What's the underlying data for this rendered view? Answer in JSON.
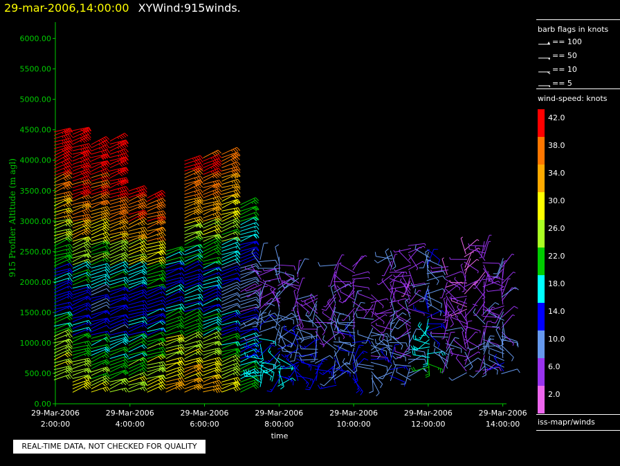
{
  "header": {
    "timestamp": "29-mar-2006,14:00:00",
    "title": "XYWind:915winds."
  },
  "legend": {
    "barb_title": "barb flags in knots",
    "barb_items": [
      "== 100",
      "== 50",
      "== 10",
      "== 5"
    ],
    "speed_title": "wind-speed: knots",
    "speed_labels": [
      "42.0",
      "38.0",
      "34.0",
      "30.0",
      "26.0",
      "22.0",
      "18.0",
      "14.0",
      "10.0",
      "6.0",
      "2.0"
    ],
    "speed_colors": [
      "#ff0000",
      "#ff7700",
      "#ffaa00",
      "#ffff00",
      "#aaff22",
      "#00cc00",
      "#00ffff",
      "#0000ff",
      "#6699ee",
      "#9933ee",
      "#ee66ee"
    ],
    "source": "iss-mapr/winds"
  },
  "notice": "REAL-TIME DATA, NOT CHECKED FOR QUALITY",
  "chart_data": {
    "type": "wind-barb time-height",
    "ylabel": "915 Profiler Altitude (m agl)",
    "xlabel": "time",
    "ylim": [
      0,
      6200
    ],
    "yticks": [
      "0.00",
      "500.00",
      "1000.00",
      "1500.00",
      "2000.00",
      "2500.00",
      "3000.00",
      "3500.00",
      "4000.00",
      "4500.00",
      "5000.00",
      "5500.00",
      "6000.00"
    ],
    "xticks": [
      {
        "date": "29-Mar-2006",
        "time": "2:00:00"
      },
      {
        "date": "29-Mar-2006",
        "time": "4:00:00"
      },
      {
        "date": "29-Mar-2006",
        "time": "6:00:00"
      },
      {
        "date": "29-Mar-2006",
        "time": "8:00:00"
      },
      {
        "date": "29-Mar-2006",
        "time": "10:00:00"
      },
      {
        "date": "29-Mar-2006",
        "time": "12:00:00"
      },
      {
        "date": "29-Mar-2006",
        "time": "14:00:00"
      }
    ],
    "x_range_hours": [
      2,
      14.3
    ],
    "profiles": [
      {
        "t": 2.0,
        "top": 4500,
        "bottom": 400,
        "spd": [
          29,
          28,
          26,
          21,
          14,
          16,
          22,
          28,
          33,
          38,
          42,
          44
        ]
      },
      {
        "t": 2.5,
        "top": 4500,
        "bottom": 200,
        "spd": [
          30,
          26,
          22,
          15,
          14,
          20,
          26,
          32,
          37,
          41,
          43,
          44
        ]
      },
      {
        "t": 3.0,
        "top": 4300,
        "bottom": 200,
        "spd": [
          28,
          24,
          20,
          14,
          13,
          18,
          24,
          30,
          36,
          40,
          42,
          44
        ]
      },
      {
        "t": 3.5,
        "top": 4350,
        "bottom": 200,
        "spd": [
          26,
          23,
          19,
          13,
          14,
          19,
          26,
          33,
          38,
          42,
          43,
          44
        ]
      },
      {
        "t": 4.0,
        "top": 3500,
        "bottom": 200,
        "spd": [
          28,
          24,
          20,
          15,
          14,
          18,
          28,
          34,
          39,
          42,
          43,
          43
        ]
      },
      {
        "t": 4.5,
        "top": 3400,
        "bottom": 200,
        "spd": [
          30,
          27,
          23,
          16,
          14,
          22,
          30,
          36,
          40,
          42,
          43,
          44
        ]
      },
      {
        "t": 5.0,
        "top": 2550,
        "bottom": 200,
        "spd": [
          32,
          30,
          27,
          22,
          16,
          14,
          20,
          28,
          33,
          38,
          41,
          42
        ]
      },
      {
        "t": 5.5,
        "top": 4000,
        "bottom": 200,
        "spd": [
          34,
          31,
          27,
          22,
          17,
          14,
          20,
          27,
          33,
          38,
          41,
          43
        ]
      },
      {
        "t": 6.0,
        "top": 4050,
        "bottom": 200,
        "spd": [
          34,
          30,
          26,
          20,
          15,
          16,
          22,
          28,
          34,
          38,
          41,
          42
        ]
      },
      {
        "t": 6.5,
        "top": 4150,
        "bottom": 200,
        "spd": [
          30,
          26,
          21,
          16,
          10,
          12,
          18,
          24,
          30,
          34,
          38,
          41
        ]
      },
      {
        "t": 7.0,
        "top": 3300,
        "bottom": 200,
        "spd": [
          22,
          19,
          16,
          12,
          8,
          10,
          14,
          18,
          22,
          26,
          28,
          30
        ]
      },
      {
        "t": 7.5,
        "top": 2400,
        "bottom": 300,
        "spd": [
          20,
          18,
          15,
          11,
          8,
          7,
          9,
          12,
          14,
          16,
          18,
          20
        ]
      },
      {
        "t": 8.0,
        "top": 2400,
        "bottom": 300,
        "spd": [
          18,
          16,
          13,
          10,
          8,
          7,
          9,
          12,
          15,
          18,
          20,
          22
        ]
      },
      {
        "t": 8.5,
        "top": 2200,
        "bottom": 400,
        "spd": [
          16,
          14,
          12,
          10,
          8,
          7,
          9,
          12,
          16,
          19,
          22,
          24
        ]
      },
      {
        "t": 9.0,
        "top": 1800,
        "bottom": 400,
        "spd": [
          15,
          13,
          11,
          9,
          7,
          6,
          8,
          11,
          14,
          17,
          20,
          22
        ]
      },
      {
        "t": 9.5,
        "top": 2300,
        "bottom": 300,
        "spd": [
          14,
          12,
          10,
          8,
          7,
          6,
          8,
          10,
          13,
          16,
          19,
          22
        ]
      },
      {
        "t": 10.0,
        "top": 2300,
        "bottom": 400,
        "spd": [
          15,
          13,
          11,
          9,
          7,
          6,
          7,
          9,
          12,
          15,
          18,
          21
        ]
      },
      {
        "t": 10.5,
        "top": 1800,
        "bottom": 400,
        "spd": [
          13,
          11,
          9,
          8,
          6,
          5,
          7,
          9,
          11,
          14,
          16,
          18
        ]
      },
      {
        "t": 11.0,
        "top": 2500,
        "bottom": 400,
        "spd": [
          14,
          12,
          10,
          8,
          7,
          6,
          8,
          10,
          13,
          16,
          18,
          20
        ]
      },
      {
        "t": 11.5,
        "top": 2650,
        "bottom": 400,
        "spd": [
          12,
          10,
          9,
          8,
          6,
          5,
          7,
          9,
          12,
          14,
          16,
          18
        ]
      },
      {
        "t": 12.0,
        "top": 2550,
        "bottom": 600,
        "spd": [
          24,
          22,
          18,
          15,
          12,
          10,
          12,
          14,
          16,
          18,
          18,
          20
        ]
      },
      {
        "t": 12.5,
        "top": 2300,
        "bottom": 600,
        "spd": [
          10,
          9,
          8,
          7,
          6,
          5,
          6,
          8,
          10,
          12,
          14,
          15
        ]
      },
      {
        "t": 13.0,
        "top": 2550,
        "bottom": 500,
        "spd": [
          9,
          8,
          7,
          6,
          5,
          4,
          5,
          7,
          9,
          11,
          13,
          14
        ]
      },
      {
        "t": 13.5,
        "top": 2650,
        "bottom": 500,
        "spd": [
          10,
          9,
          8,
          7,
          6,
          5,
          6,
          7,
          8,
          10,
          12,
          14
        ]
      },
      {
        "t": 14.0,
        "top": 2400,
        "bottom": 500,
        "spd": [
          12,
          11,
          10,
          9,
          7,
          6,
          7,
          8,
          10,
          12,
          13,
          14
        ]
      }
    ]
  }
}
